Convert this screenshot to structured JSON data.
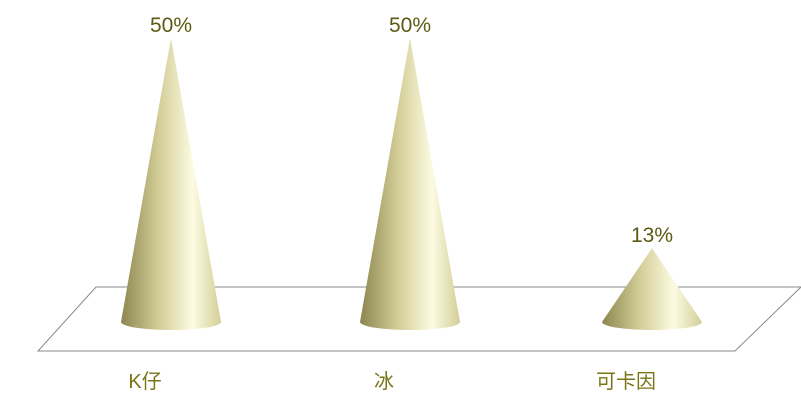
{
  "chart_data": {
    "type": "bar",
    "bar_shape": "cone",
    "categories": [
      "K仔",
      "冰",
      "可卡因"
    ],
    "values": [
      50,
      50,
      13
    ],
    "data_labels": [
      "50%",
      "50%",
      "13%"
    ],
    "value_unit": "%",
    "ylim": [
      0,
      50
    ],
    "title": "",
    "xlabel": "",
    "ylabel": "",
    "grid": false,
    "legend": "none",
    "colors": {
      "cone_light": "#FCFBE2",
      "cone_mid": "#D3CE97",
      "cone_dark": "#8C8650",
      "label_text": "#5C5A12",
      "category_text": "#7A7618",
      "floor_stroke": "#8a8a8a"
    }
  }
}
